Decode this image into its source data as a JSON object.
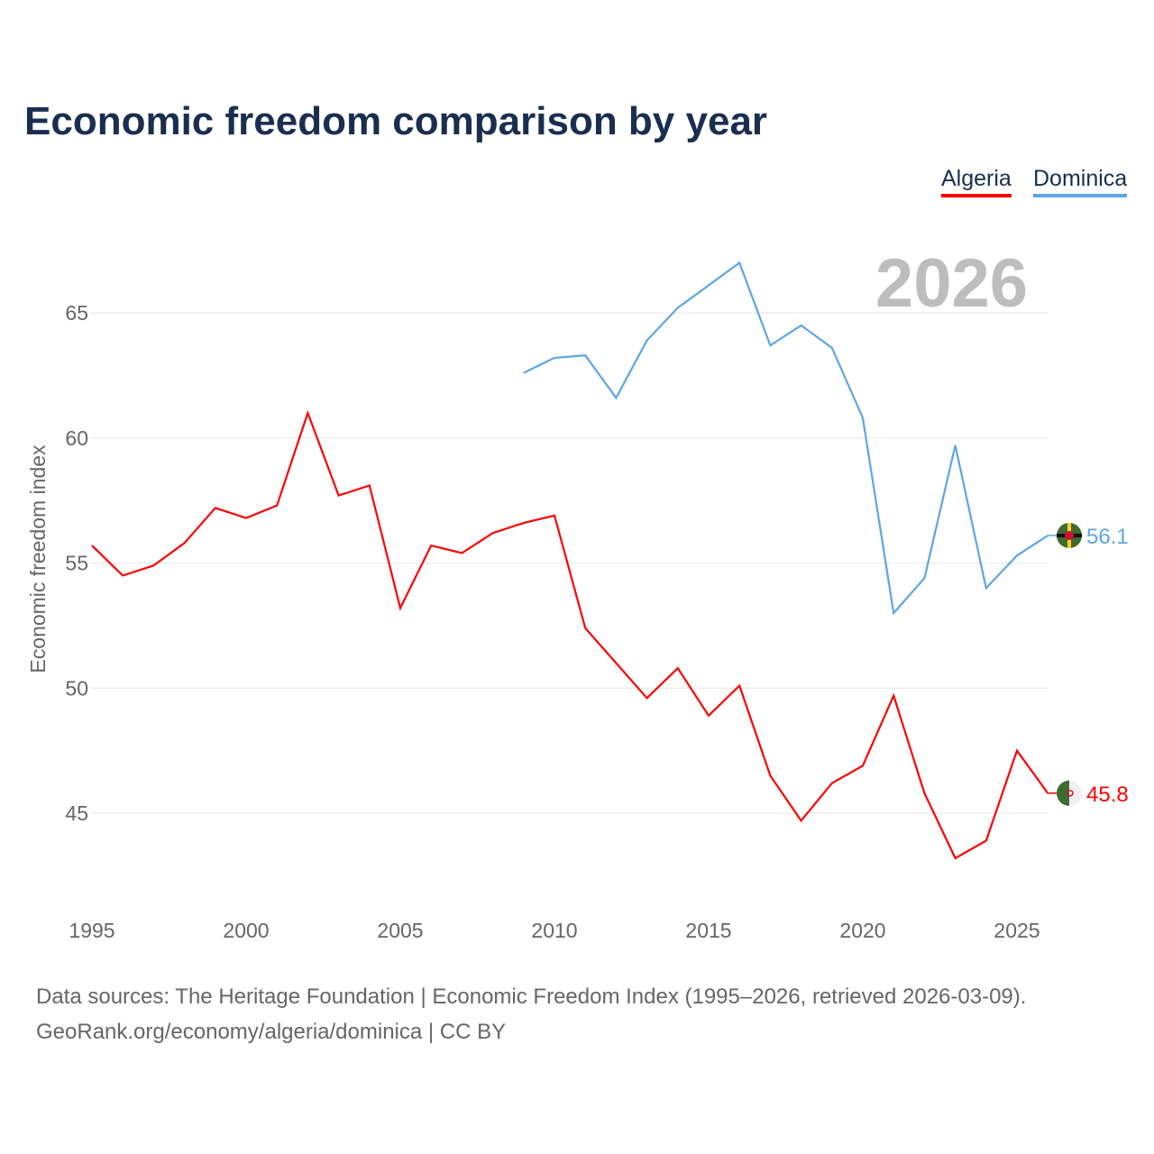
{
  "title": "Economic freedom comparison by year",
  "footer": {
    "line1": "Data sources: The Heritage Foundation | Economic Freedom Index (1995–2026, retrieved 2026-03-09).",
    "line2": "GeoRank.org/economy/algeria/dominica | CC BY"
  },
  "chart_data": {
    "type": "line",
    "title": "Economic freedom comparison by year",
    "ylabel": "Economic freedom index",
    "xlabel": "",
    "year_label": "2026",
    "xlim": [
      1995,
      2026
    ],
    "ylim": [
      41.3,
      69
    ],
    "xticks": [
      "1995",
      "2000",
      "2005",
      "2010",
      "2015",
      "2020",
      "2025"
    ],
    "yticks": [
      "45",
      "50",
      "55",
      "60",
      "65"
    ],
    "grid": true,
    "legend_position": "top-right",
    "series": [
      {
        "name": "Algeria",
        "color": "#ff0000",
        "end_label": "45.8",
        "x": [
          1995,
          1996,
          1997,
          1998,
          1999,
          2000,
          2001,
          2002,
          2003,
          2004,
          2005,
          2006,
          2007,
          2008,
          2009,
          2010,
          2011,
          2012,
          2013,
          2014,
          2015,
          2016,
          2017,
          2018,
          2019,
          2020,
          2021,
          2022,
          2023,
          2024,
          2025,
          2026
        ],
        "values": [
          55.7,
          54.5,
          54.9,
          55.8,
          57.2,
          56.8,
          57.3,
          61.0,
          57.7,
          58.1,
          53.2,
          55.7,
          55.4,
          56.2,
          56.6,
          56.9,
          52.4,
          51.0,
          49.6,
          50.8,
          48.9,
          50.1,
          46.5,
          44.7,
          46.2,
          46.9,
          49.7,
          45.8,
          43.2,
          43.9,
          47.5,
          45.8
        ]
      },
      {
        "name": "Dominica",
        "color": "#5da5e8",
        "end_label": "56.1",
        "x": [
          2009,
          2010,
          2011,
          2012,
          2013,
          2014,
          2015,
          2016,
          2017,
          2018,
          2019,
          2020,
          2021,
          2022,
          2023,
          2024,
          2025,
          2026
        ],
        "values": [
          62.6,
          63.2,
          63.3,
          61.6,
          63.9,
          65.2,
          66.1,
          67.0,
          63.7,
          64.5,
          63.6,
          60.8,
          53.0,
          54.4,
          59.7,
          54.0,
          55.3,
          56.1
        ]
      }
    ]
  }
}
